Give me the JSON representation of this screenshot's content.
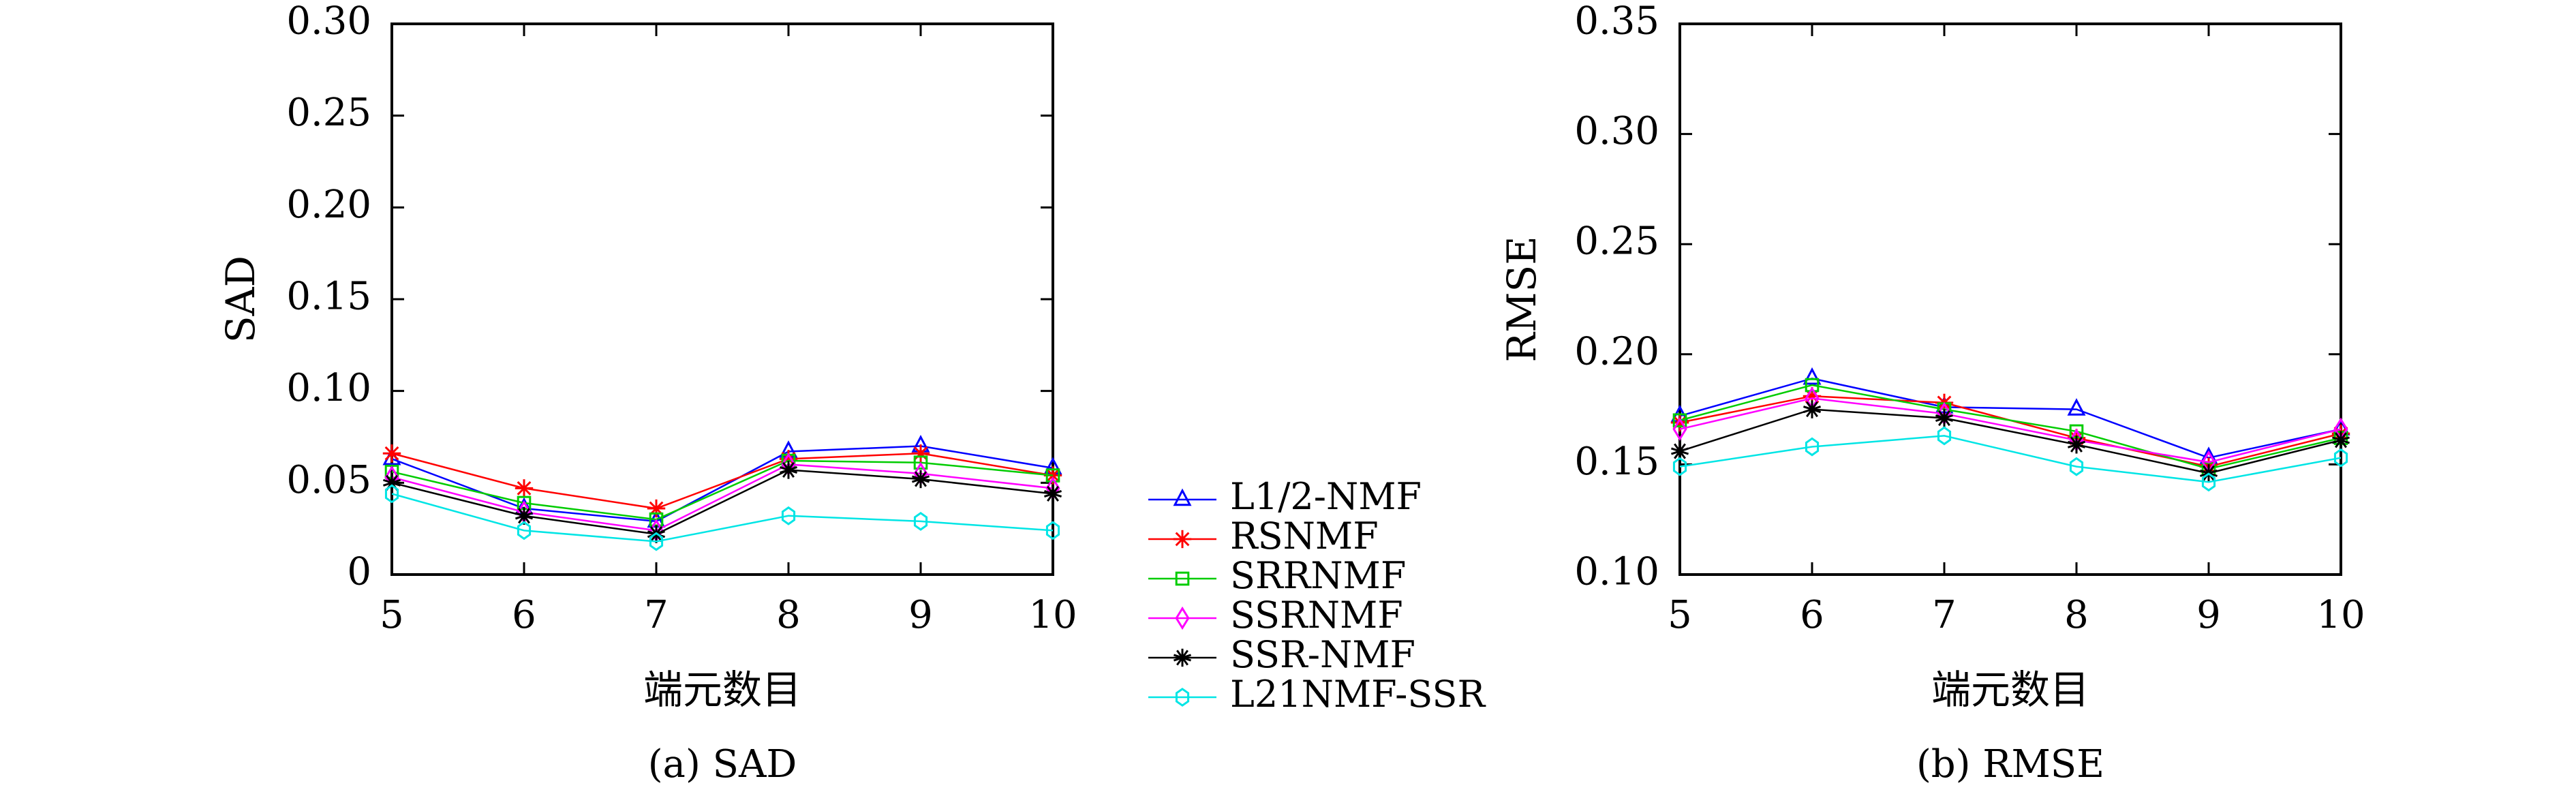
{
  "chart_data": [
    {
      "type": "line",
      "caption": "(a) SAD",
      "ylabel": "SAD",
      "xlabel": "端元数目",
      "x": [
        5,
        6,
        7,
        8,
        9,
        10
      ],
      "xlim": [
        5,
        10
      ],
      "ylim": [
        0,
        0.3
      ],
      "yticks": [
        0,
        0.05,
        0.1,
        0.15,
        0.2,
        0.25,
        0.3
      ],
      "ytick_labels": [
        "0",
        "0.05",
        "0.10",
        "0.15",
        "0.20",
        "0.25",
        "0.30"
      ],
      "grid": false,
      "series": [
        {
          "name": "L1/2-NMF",
          "color": "#0000ff",
          "marker": "triangle",
          "values": [
            0.063,
            0.036,
            0.029,
            0.067,
            0.07,
            0.058
          ]
        },
        {
          "name": "RSNMF",
          "color": "#ff0000",
          "marker": "asterisk",
          "values": [
            0.066,
            0.047,
            0.036,
            0.063,
            0.066,
            0.054
          ]
        },
        {
          "name": "SRRNMF",
          "color": "#00cc00",
          "marker": "square",
          "values": [
            0.056,
            0.039,
            0.03,
            0.062,
            0.061,
            0.054
          ]
        },
        {
          "name": "SSRNMF",
          "color": "#ff00ff",
          "marker": "diamond",
          "values": [
            0.053,
            0.034,
            0.024,
            0.06,
            0.055,
            0.047
          ]
        },
        {
          "name": "SSR-NMF",
          "color": "#000000",
          "marker": "star",
          "values": [
            0.05,
            0.032,
            0.022,
            0.057,
            0.052,
            0.044
          ]
        },
        {
          "name": "L21NMF-SSR",
          "color": "#00e5e5",
          "marker": "hexagon",
          "values": [
            0.044,
            0.024,
            0.018,
            0.032,
            0.029,
            0.024
          ]
        }
      ]
    },
    {
      "type": "line",
      "caption": "(b) RMSE",
      "ylabel": "RMSE",
      "xlabel": "端元数目",
      "x": [
        5,
        6,
        7,
        8,
        9,
        10
      ],
      "xlim": [
        5,
        10
      ],
      "ylim": [
        0.1,
        0.35
      ],
      "yticks": [
        0.1,
        0.15,
        0.2,
        0.25,
        0.3,
        0.35
      ],
      "ytick_labels": [
        "0.10",
        "0.15",
        "0.20",
        "0.25",
        "0.30",
        "0.35"
      ],
      "grid": false,
      "series": [
        {
          "name": "L1/2-NMF",
          "color": "#0000ff",
          "marker": "triangle",
          "values": [
            0.172,
            0.189,
            0.176,
            0.175,
            0.153,
            0.166
          ]
        },
        {
          "name": "RSNMF",
          "color": "#ff0000",
          "marker": "asterisk",
          "values": [
            0.169,
            0.181,
            0.178,
            0.162,
            0.149,
            0.164
          ]
        },
        {
          "name": "SRRNMF",
          "color": "#00cc00",
          "marker": "square",
          "values": [
            0.17,
            0.186,
            0.175,
            0.165,
            0.148,
            0.162
          ]
        },
        {
          "name": "SSRNMF",
          "color": "#ff00ff",
          "marker": "diamond",
          "values": [
            0.166,
            0.18,
            0.173,
            0.161,
            0.151,
            0.166
          ]
        },
        {
          "name": "SSR-NMF",
          "color": "#000000",
          "marker": "star",
          "values": [
            0.156,
            0.175,
            0.171,
            0.159,
            0.146,
            0.161
          ]
        },
        {
          "name": "L21NMF-SSR",
          "color": "#00e5e5",
          "marker": "hexagon",
          "values": [
            0.149,
            0.158,
            0.163,
            0.149,
            0.142,
            0.153
          ]
        }
      ]
    }
  ],
  "legend": {
    "placement": "bottom-center",
    "entries": [
      "L1/2-NMF",
      "RSNMF",
      "SRRNMF",
      "SSRNMF",
      "SSR-NMF",
      "L21NMF-SSR"
    ]
  }
}
